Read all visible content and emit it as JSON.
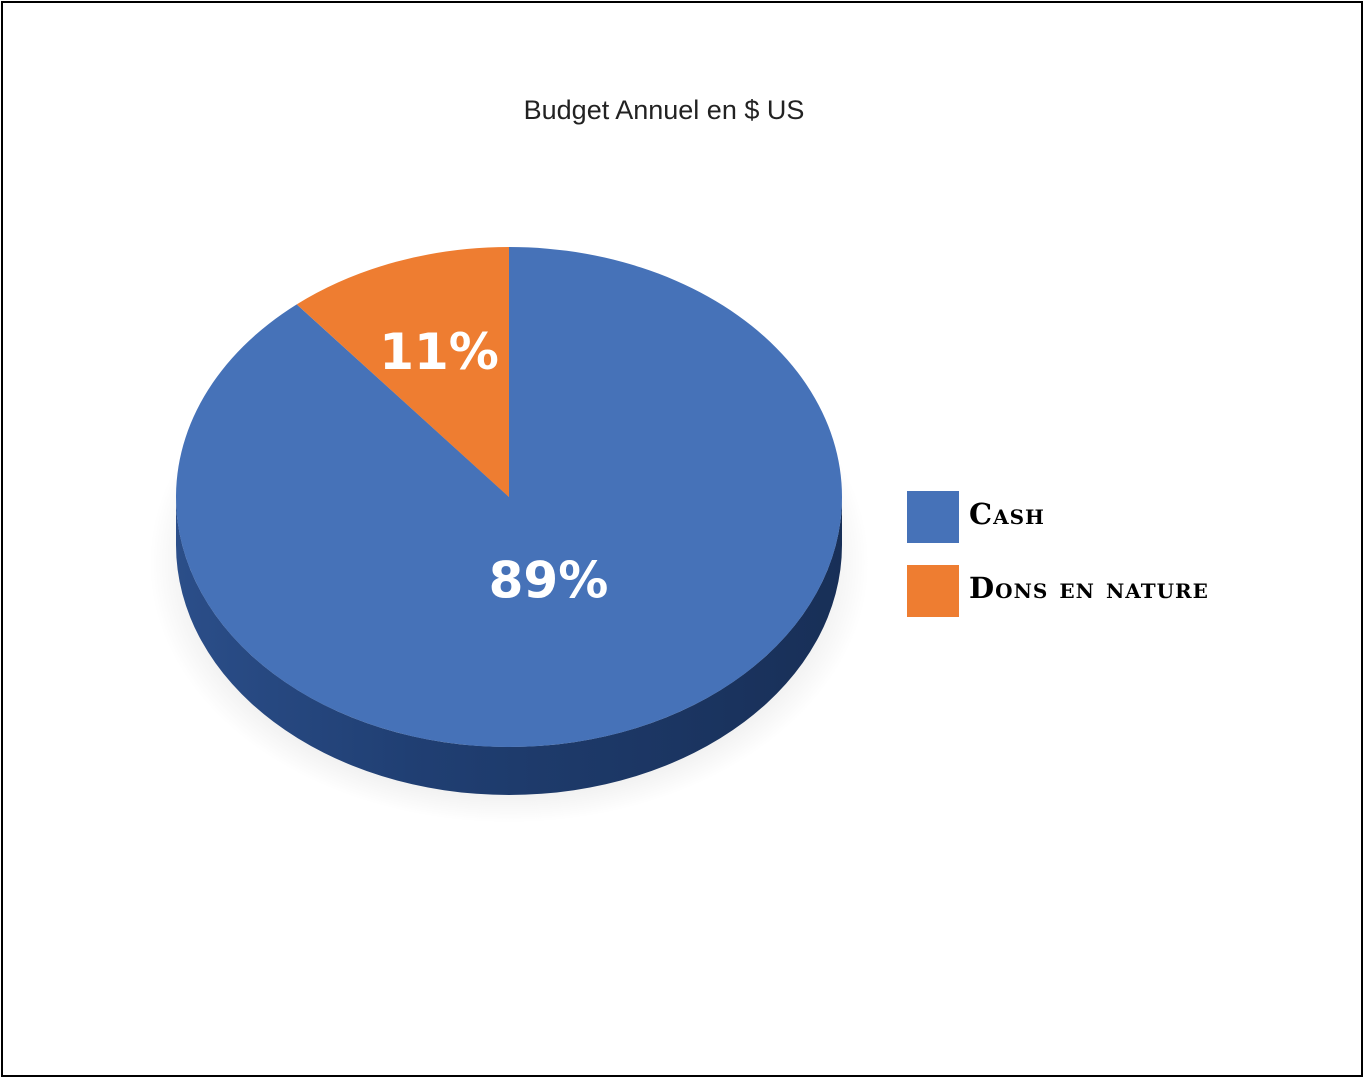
{
  "chart_data": {
    "type": "pie",
    "title": "Budget Annuel en $ US",
    "slices": [
      {
        "name": "Cash",
        "value": 89,
        "label": "89%",
        "color": "#4672b8"
      },
      {
        "name": "Dons en nature",
        "value": 11,
        "label": "11%",
        "color": "#ee7d31"
      }
    ],
    "style": "3d",
    "legend": "right"
  }
}
